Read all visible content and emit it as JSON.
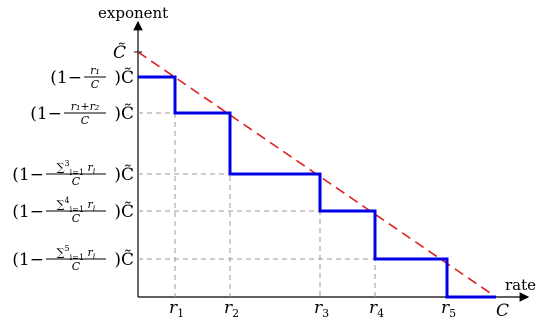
{
  "axes": {
    "y_label": "exponent",
    "x_label": "rate"
  },
  "x_ticks": [
    {
      "sym": "r",
      "sub": "1"
    },
    {
      "sym": "r",
      "sub": "2"
    },
    {
      "sym": "r",
      "sub": "3"
    },
    {
      "sym": "r",
      "sub": "4"
    },
    {
      "sym": "r",
      "sub": "5"
    }
  ],
  "x_end_label": "C",
  "y_top_label": "C̃",
  "y_levels": [
    {
      "num": "r₁",
      "frac_sum": false
    },
    {
      "num": "r₁+r₂",
      "frac_sum": false
    },
    {
      "num": "∑ r",
      "upper": "3",
      "lower": "i=1",
      "sub": "i",
      "frac_sum": true
    },
    {
      "num": "∑ r",
      "upper": "4",
      "lower": "i=1",
      "sub": "i",
      "frac_sum": true
    },
    {
      "num": "∑ r",
      "upper": "5",
      "lower": "i=1",
      "sub": "i",
      "frac_sum": true
    }
  ],
  "colors": {
    "staircase": "#0000e6",
    "diagonal": "#e02020",
    "guides": "#9a9a9a",
    "axes": "#000000"
  }
}
